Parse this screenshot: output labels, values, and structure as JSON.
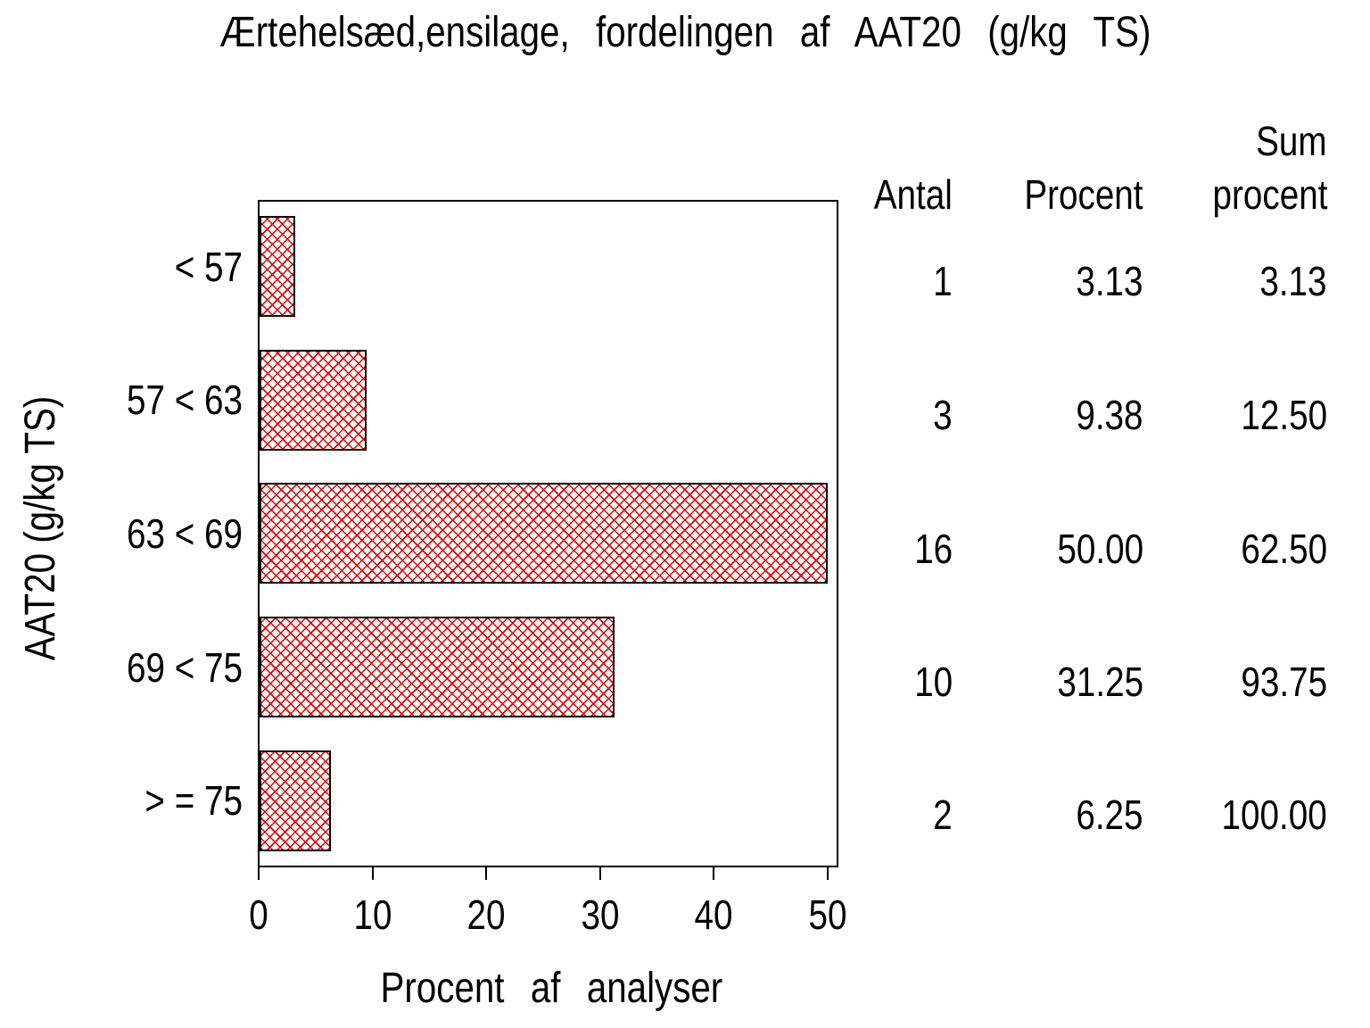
{
  "title": "Ærtehelsæd,ensilage, fordelingen af AAT20 (g/kg TS)",
  "axes": {
    "y_label": "AAT20 (g/kg TS)",
    "x_label": "Procent af analyser",
    "x_ticks": [
      "0",
      "10",
      "20",
      "30",
      "40",
      "50"
    ]
  },
  "categories": [
    "< 57",
    "57 < 63",
    "63 < 69",
    "69 < 75",
    "> = 75"
  ],
  "table": {
    "headers": {
      "antal": "Antal",
      "procent": "Procent",
      "sum_line1": "Sum",
      "sum_line2": "procent"
    },
    "rows": [
      {
        "antal": "1",
        "procent": "3.13",
        "sum": "3.13"
      },
      {
        "antal": "3",
        "procent": "9.38",
        "sum": "12.50"
      },
      {
        "antal": "16",
        "procent": "50.00",
        "sum": "62.50"
      },
      {
        "antal": "10",
        "procent": "31.25",
        "sum": "93.75"
      },
      {
        "antal": "2",
        "procent": "6.25",
        "sum": "100.00"
      }
    ]
  },
  "chart_data": {
    "type": "bar",
    "orientation": "horizontal",
    "title": "Ærtehelsæd,ensilage, fordelingen af AAT20 (g/kg TS)",
    "categories": [
      "< 57",
      "57 < 63",
      "63 < 69",
      "69 < 75",
      "> = 75"
    ],
    "values": [
      3.13,
      9.38,
      50.0,
      31.25,
      6.25
    ],
    "counts": [
      1,
      3,
      16,
      10,
      2
    ],
    "cum_percent": [
      3.13,
      12.5,
      62.5,
      93.75,
      100.0
    ],
    "xlabel": "Procent af analyser",
    "ylabel": "AAT20 (g/kg TS)",
    "xlim": [
      0,
      50
    ],
    "x_tick_values": [
      0,
      10,
      20,
      30,
      40,
      50
    ],
    "grid": false,
    "legend": "none",
    "bar_fill_style": "red-crosshatch",
    "bar_hatch_color": "#e00000",
    "bar_border_color": "#000000",
    "background_color": "#ffffff",
    "text_color": "#000000"
  }
}
